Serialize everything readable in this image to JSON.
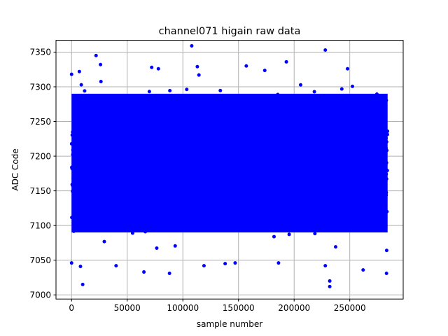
{
  "chart_data": {
    "type": "scatter",
    "title": "channel071 higain raw data",
    "xlabel": "sample number",
    "ylabel": "ADC Code",
    "xlim": [
      -14000,
      298000
    ],
    "ylim": [
      6994,
      7367
    ],
    "x_ticks": [
      0,
      50000,
      100000,
      150000,
      200000,
      250000
    ],
    "x_tick_labels": [
      "0",
      "50000",
      "100000",
      "150000",
      "200000",
      "250000"
    ],
    "y_ticks": [
      7000,
      7050,
      7100,
      7150,
      7200,
      7250,
      7300,
      7350
    ],
    "y_tick_labels": [
      "7000",
      "7050",
      "7100",
      "7150",
      "7200",
      "7250",
      "7300",
      "7350"
    ],
    "grid": true,
    "marker_color": "#0000ff",
    "series": [
      {
        "n_samples": 284000,
        "dense_band": {
          "x_range": [
            0,
            284000
          ],
          "y_range": [
            7090,
            7290
          ]
        },
        "outliers": [
          {
            "x": 22000,
            "y": 7345
          },
          {
            "x": 26000,
            "y": 7332
          },
          {
            "x": 108000,
            "y": 7359
          },
          {
            "x": 228000,
            "y": 7353
          },
          {
            "x": 193000,
            "y": 7336
          },
          {
            "x": 248000,
            "y": 7326
          },
          {
            "x": 157000,
            "y": 7330
          },
          {
            "x": 113000,
            "y": 7329
          },
          {
            "x": 72000,
            "y": 7328
          },
          {
            "x": 78000,
            "y": 7326
          },
          {
            "x": 7000,
            "y": 7322
          },
          {
            "x": 0,
            "y": 7318
          },
          {
            "x": 8000,
            "y": 7041
          },
          {
            "x": 10000,
            "y": 7015
          },
          {
            "x": 0,
            "y": 7046
          },
          {
            "x": 40000,
            "y": 7042
          },
          {
            "x": 65000,
            "y": 7033
          },
          {
            "x": 88000,
            "y": 7031
          },
          {
            "x": 119000,
            "y": 7042
          },
          {
            "x": 138000,
            "y": 7045
          },
          {
            "x": 147000,
            "y": 7046
          },
          {
            "x": 186000,
            "y": 7046
          },
          {
            "x": 232000,
            "y": 7020
          },
          {
            "x": 232000,
            "y": 7012
          },
          {
            "x": 228000,
            "y": 7042
          },
          {
            "x": 262000,
            "y": 7036
          },
          {
            "x": 283000,
            "y": 7031
          }
        ]
      }
    ]
  }
}
